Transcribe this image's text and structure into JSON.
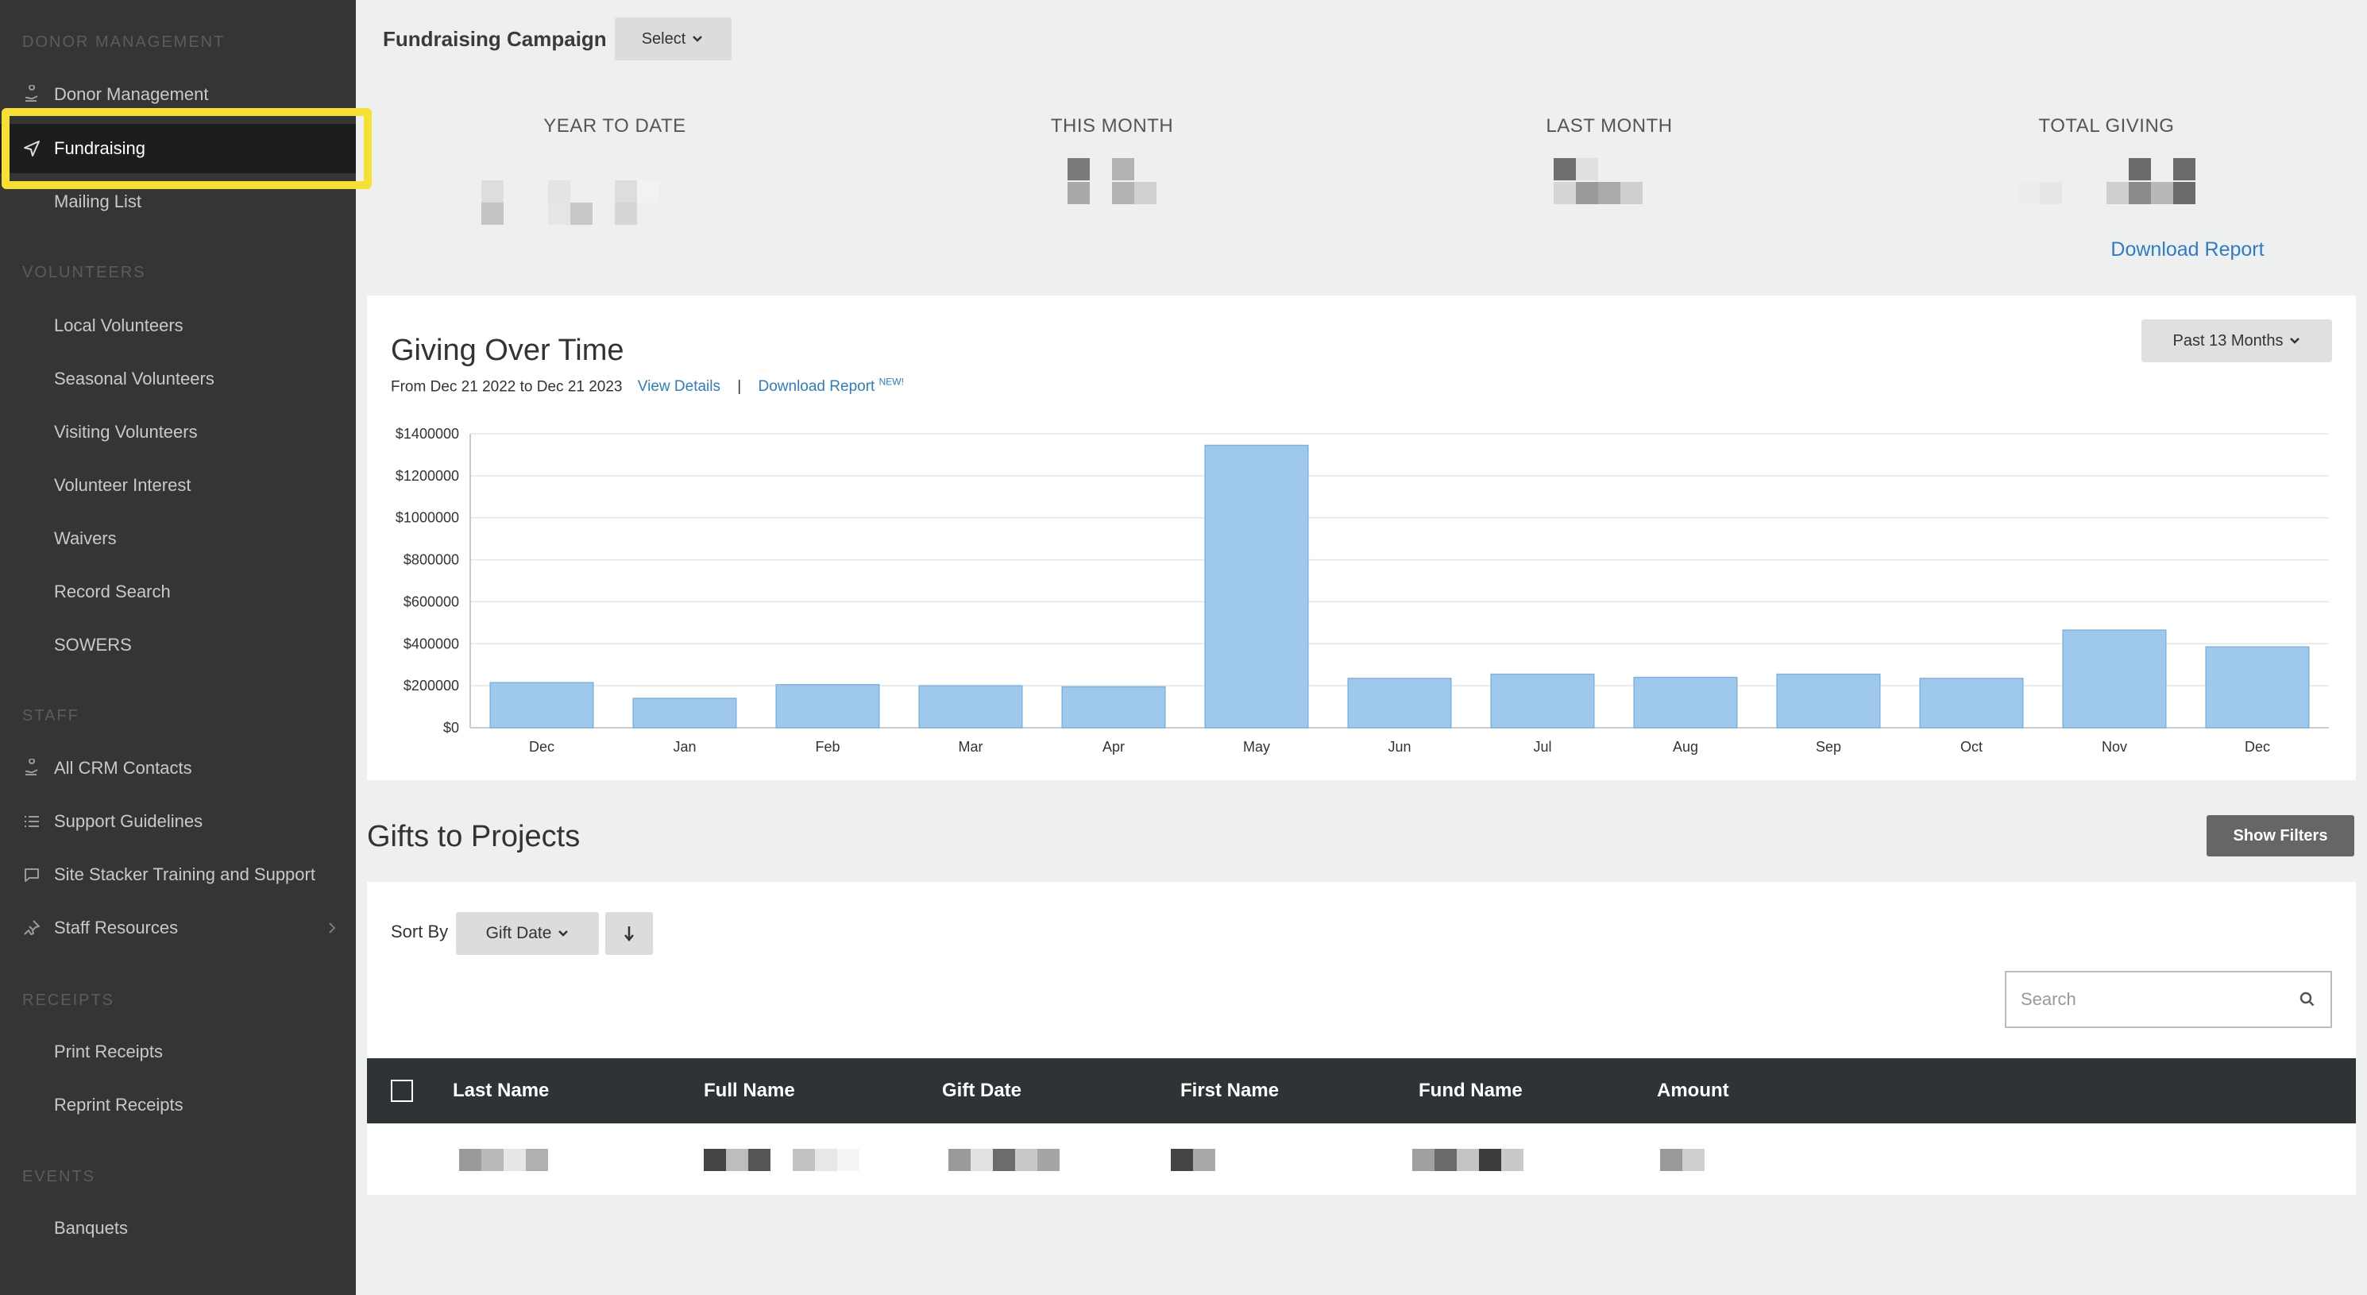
{
  "sidebar": {
    "sections": [
      {
        "heading": "DONOR MANAGEMENT",
        "items": [
          {
            "label": "Donor Management",
            "icon": "donor-hands-icon"
          },
          {
            "label": "Fundraising",
            "icon": "paper-plane-icon",
            "active": true
          },
          {
            "label": "Mailing List",
            "icon": ""
          }
        ]
      },
      {
        "heading": "VOLUNTEERS",
        "items": [
          {
            "label": "Local Volunteers"
          },
          {
            "label": "Seasonal Volunteers"
          },
          {
            "label": "Visiting Volunteers"
          },
          {
            "label": "Volunteer Interest"
          },
          {
            "label": "Waivers"
          },
          {
            "label": "Record Search"
          },
          {
            "label": "SOWERS"
          }
        ]
      },
      {
        "heading": "STAFF",
        "items": [
          {
            "label": "All CRM Contacts",
            "icon": "donor-hands-icon"
          },
          {
            "label": "Support Guidelines",
            "icon": "list-icon"
          },
          {
            "label": "Site Stacker Training and Support",
            "icon": "chat-bubble-icon"
          },
          {
            "label": "Staff Resources",
            "icon": "pin-icon",
            "has_submenu": true
          }
        ]
      },
      {
        "heading": "RECEIPTS",
        "items": [
          {
            "label": "Print Receipts"
          },
          {
            "label": "Reprint Receipts"
          }
        ]
      },
      {
        "heading": "EVENTS",
        "items": [
          {
            "label": "Banquets"
          }
        ]
      }
    ]
  },
  "header": {
    "campaign_label": "Fundraising Campaign",
    "select_label": "Select"
  },
  "stats": [
    {
      "label": "YEAR TO DATE"
    },
    {
      "label": "THIS MONTH"
    },
    {
      "label": "LAST MONTH"
    },
    {
      "label": "TOTAL GIVING"
    }
  ],
  "download_report_label": "Download Report",
  "giving": {
    "title": "Giving Over Time",
    "range_text": "From Dec 21 2022 to Dec 21 2023",
    "view_details": "View Details",
    "separator": "|",
    "download_report": "Download Report",
    "new_tag": "NEW!",
    "range_button": "Past 13 Months"
  },
  "chart_data": {
    "type": "bar",
    "categories": [
      "Dec",
      "Jan",
      "Feb",
      "Mar",
      "Apr",
      "May",
      "Jun",
      "Jul",
      "Aug",
      "Sep",
      "Oct",
      "Nov",
      "Dec"
    ],
    "values": [
      215000,
      140000,
      205000,
      200000,
      195000,
      1345000,
      235000,
      255000,
      240000,
      255000,
      235000,
      465000,
      385000
    ],
    "ylim": [
      0,
      1400000
    ],
    "yticks": [
      "$0",
      "$200000",
      "$400000",
      "$600000",
      "$800000",
      "$1000000",
      "$1200000",
      "$1400000"
    ],
    "grid": true,
    "bar_color": "#9ec8ec",
    "bar_stroke": "#7fb3e0"
  },
  "gifts": {
    "title": "Gifts to Projects",
    "show_filters": "Show Filters",
    "sort_by": "Sort By",
    "sort_field": "Gift Date",
    "search_placeholder": "Search",
    "columns": [
      "Last Name",
      "Full Name",
      "Gift Date",
      "First Name",
      "Fund Name",
      "Amount"
    ]
  },
  "colors": {
    "sidebar_bg": "#353535",
    "active_bg": "#1d1d1d",
    "highlight": "#f7e034",
    "link": "#2f7cc4",
    "table_header": "#2e3336"
  }
}
